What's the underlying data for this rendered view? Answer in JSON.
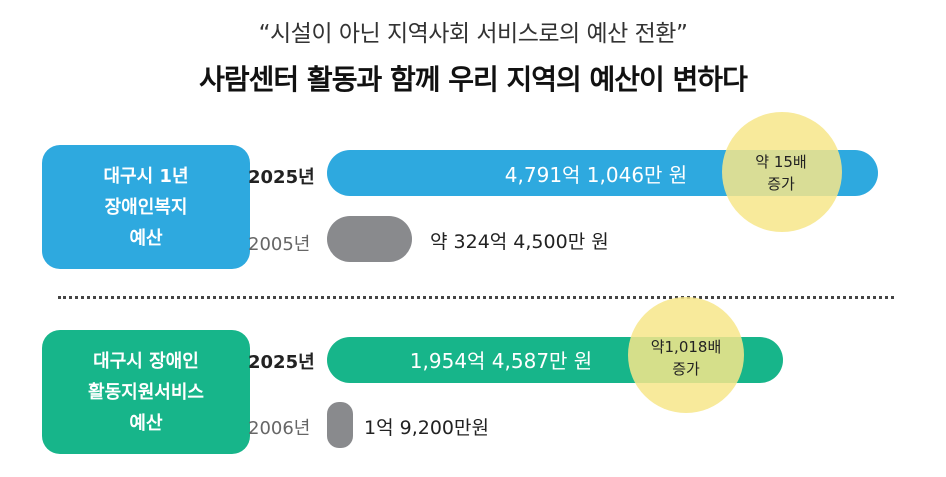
{
  "header": {
    "subtitle": "“시설이 아닌 지역사회 서비스로의 예산 전환”",
    "title": "사람센터 활동과 함께 우리 지역의 예산이 변하다"
  },
  "colors": {
    "blue": "#2ea9df",
    "green": "#17b58a",
    "gray": "#898a8d",
    "highlight": "#f7e68a"
  },
  "chart_data": [
    {
      "type": "bar",
      "category_label": "대구시 1년\n장애인복지\n예산",
      "categories": [
        "2025년",
        "2005년"
      ],
      "values_won": [
        479110460000,
        32445000000
      ],
      "value_labels": [
        "4,791억 1,046만 원",
        "약 324억 4,500만 원"
      ],
      "annotation": {
        "top": "약 15배",
        "bottom": "증가"
      }
    },
    {
      "type": "bar",
      "category_label": "대구시 장애인\n활동지원서비스\n예산",
      "categories": [
        "2025년",
        "2006년"
      ],
      "values_won": [
        195445870000,
        192000000
      ],
      "value_labels": [
        "1,954억 4,587만 원",
        "1억 9,200만원"
      ],
      "annotation": {
        "top": "약1,018배",
        "bottom": "증가"
      }
    }
  ]
}
